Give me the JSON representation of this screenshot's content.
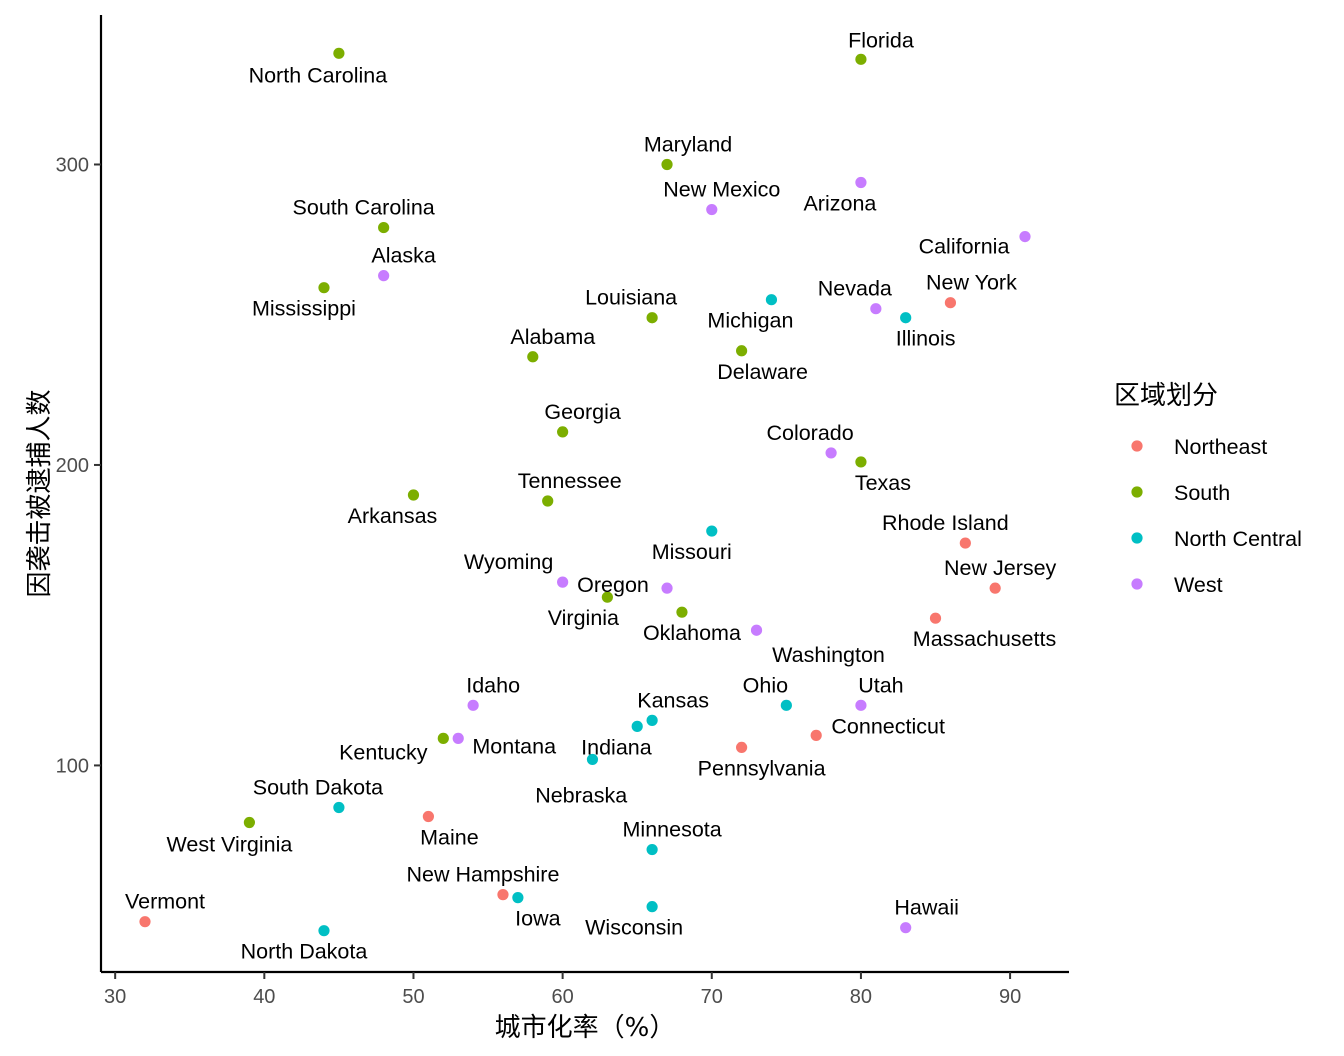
{
  "chart_data": {
    "type": "scatter",
    "xlabel": "城市化率（%）",
    "ylabel": "因袭击被逮捕人数",
    "xlim": [
      29.05,
      93.95
    ],
    "ylim": [
      31.25,
      349.75
    ],
    "xticks": [
      30,
      40,
      50,
      60,
      70,
      80,
      90
    ],
    "yticks": [
      100,
      200,
      300
    ],
    "grid": false,
    "legend": {
      "title": "区域划分",
      "placement": "right",
      "entries": [
        {
          "name": "Northeast",
          "color": "#F8766D"
        },
        {
          "name": "South",
          "color": "#7CAE00"
        },
        {
          "name": "North Central",
          "color": "#00BFC4"
        },
        {
          "name": "West",
          "color": "#C77CFF"
        }
      ]
    },
    "points": [
      {
        "label": "North Carolina",
        "x": 45,
        "y": 337,
        "region": "South"
      },
      {
        "label": "Florida",
        "x": 80,
        "y": 335,
        "region": "South"
      },
      {
        "label": "Maryland",
        "x": 67,
        "y": 300,
        "region": "South"
      },
      {
        "label": "Arizona",
        "x": 80,
        "y": 294,
        "region": "West"
      },
      {
        "label": "New Mexico",
        "x": 70,
        "y": 285,
        "region": "West"
      },
      {
        "label": "South Carolina",
        "x": 48,
        "y": 279,
        "region": "South"
      },
      {
        "label": "California",
        "x": 91,
        "y": 276,
        "region": "West"
      },
      {
        "label": "Alaska",
        "x": 48,
        "y": 263,
        "region": "West"
      },
      {
        "label": "Mississippi",
        "x": 44,
        "y": 259,
        "region": "South"
      },
      {
        "label": "Michigan",
        "x": 74,
        "y": 255,
        "region": "North Central"
      },
      {
        "label": "New York",
        "x": 86,
        "y": 254,
        "region": "Northeast"
      },
      {
        "label": "Nevada",
        "x": 81,
        "y": 252,
        "region": "West"
      },
      {
        "label": "Illinois",
        "x": 83,
        "y": 249,
        "region": "North Central"
      },
      {
        "label": "Louisiana",
        "x": 66,
        "y": 249,
        "region": "South"
      },
      {
        "label": "Delaware",
        "x": 72,
        "y": 238,
        "region": "South"
      },
      {
        "label": "Alabama",
        "x": 58,
        "y": 236,
        "region": "South"
      },
      {
        "label": "Georgia",
        "x": 60,
        "y": 211,
        "region": "South"
      },
      {
        "label": "Colorado",
        "x": 78,
        "y": 204,
        "region": "West"
      },
      {
        "label": "Texas",
        "x": 80,
        "y": 201,
        "region": "South"
      },
      {
        "label": "Arkansas",
        "x": 50,
        "y": 190,
        "region": "South"
      },
      {
        "label": "Tennessee",
        "x": 59,
        "y": 188,
        "region": "South"
      },
      {
        "label": "Missouri",
        "x": 70,
        "y": 178,
        "region": "North Central"
      },
      {
        "label": "Rhode Island",
        "x": 87,
        "y": 174,
        "region": "Northeast"
      },
      {
        "label": "Wyoming",
        "x": 60,
        "y": 161,
        "region": "West"
      },
      {
        "label": "Oregon",
        "x": 67,
        "y": 159,
        "region": "West"
      },
      {
        "label": "New Jersey",
        "x": 89,
        "y": 159,
        "region": "Northeast"
      },
      {
        "label": "Virginia",
        "x": 63,
        "y": 156,
        "region": "South"
      },
      {
        "label": "Oklahoma",
        "x": 68,
        "y": 151,
        "region": "South"
      },
      {
        "label": "Massachusetts",
        "x": 85,
        "y": 149,
        "region": "Northeast"
      },
      {
        "label": "Washington",
        "x": 73,
        "y": 145,
        "region": "West"
      },
      {
        "label": "Idaho",
        "x": 54,
        "y": 120,
        "region": "West"
      },
      {
        "label": "Ohio",
        "x": 75,
        "y": 120,
        "region": "North Central"
      },
      {
        "label": "Utah",
        "x": 80,
        "y": 120,
        "region": "West"
      },
      {
        "label": "Kansas",
        "x": 66,
        "y": 115,
        "region": "North Central"
      },
      {
        "label": "Nebraska",
        "x": 65,
        "y": 113,
        "region": "North Central"
      },
      {
        "label": "Connecticut",
        "x": 77,
        "y": 110,
        "region": "Northeast"
      },
      {
        "label": "Kentucky",
        "x": 52,
        "y": 109,
        "region": "South"
      },
      {
        "label": "Montana",
        "x": 53,
        "y": 109,
        "region": "West"
      },
      {
        "label": "Pennsylvania",
        "x": 72,
        "y": 106,
        "region": "Northeast"
      },
      {
        "label": "Indiana",
        "x": 62,
        "y": 102,
        "region": "North Central"
      },
      {
        "label": "South Dakota",
        "x": 45,
        "y": 86,
        "region": "North Central"
      },
      {
        "label": "Maine",
        "x": 51,
        "y": 83,
        "region": "Northeast"
      },
      {
        "label": "West Virginia",
        "x": 39,
        "y": 81,
        "region": "South"
      },
      {
        "label": "Minnesota",
        "x": 66,
        "y": 72,
        "region": "North Central"
      },
      {
        "label": "New Hampshire",
        "x": 56,
        "y": 57,
        "region": "Northeast"
      },
      {
        "label": "Iowa",
        "x": 57,
        "y": 56,
        "region": "North Central"
      },
      {
        "label": "Wisconsin",
        "x": 66,
        "y": 53,
        "region": "North Central"
      },
      {
        "label": "Vermont",
        "x": 32,
        "y": 48,
        "region": "Northeast"
      },
      {
        "label": "Hawaii",
        "x": 83,
        "y": 46,
        "region": "West"
      },
      {
        "label": "North Dakota",
        "x": 44,
        "y": 45,
        "region": "North Central"
      }
    ]
  }
}
